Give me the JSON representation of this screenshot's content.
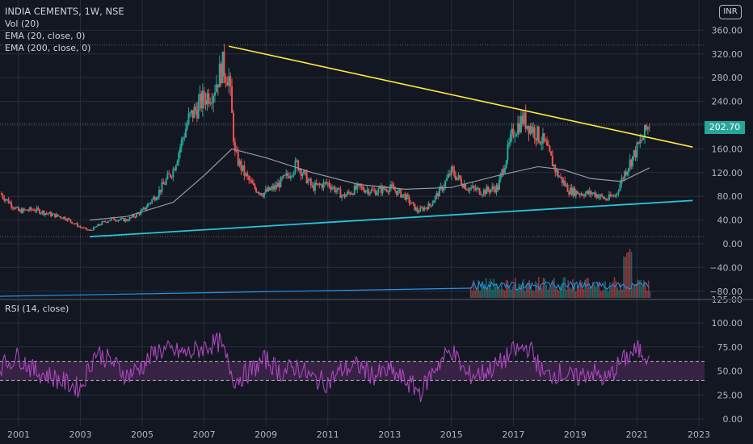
{
  "legend": {
    "title": "INDIA CEMENTS, 1W, NSE",
    "volume": "Vol (20)",
    "ema_fast": "EMA (20, close, 0)",
    "ema_slow": "EMA (200, close, 0)",
    "rsi": "RSI (14, close)"
  },
  "currency_badge": "INR",
  "last_price": "202.70",
  "colors": {
    "background": "#131722",
    "grid": "#2a2e39",
    "up": "#26a69a",
    "down": "#ef5350",
    "upper_trendline": "#ffeb3b",
    "lower_trendline": "#26c6da",
    "ema_slow": "#9598a1",
    "volume_ma": "#2196f3",
    "rsi_line": "#ab47bc",
    "rsi_band": "#3b2347"
  },
  "chart_data": [
    {
      "type": "candlestick",
      "title": "INDIA CEMENTS, 1W, NSE",
      "x": [
        2000.4,
        2001.0,
        2001.5,
        2002.0,
        2002.5,
        2003.0,
        2003.3,
        2003.7,
        2004.0,
        2004.5,
        2005.0,
        2005.5,
        2006.0,
        2006.5,
        2007.0,
        2007.3,
        2007.6,
        2007.8,
        2008.0,
        2008.3,
        2008.6,
        2008.9,
        2009.3,
        2009.7,
        2010.0,
        2010.5,
        2011.0,
        2011.5,
        2012.0,
        2012.5,
        2013.0,
        2013.5,
        2013.9,
        2014.3,
        2014.7,
        2015.0,
        2015.5,
        2016.0,
        2016.5,
        2017.0,
        2017.3,
        2017.6,
        2018.0,
        2018.4,
        2018.8,
        2019.2,
        2019.6,
        2020.0,
        2020.3,
        2020.6,
        2020.9,
        2021.2,
        2021.4
      ],
      "close": [
        85,
        55,
        58,
        50,
        44,
        28,
        22,
        35,
        42,
        40,
        55,
        85,
        125,
        210,
        245,
        260,
        300,
        280,
        150,
        118,
        95,
        85,
        95,
        115,
        135,
        95,
        102,
        80,
        95,
        88,
        95,
        80,
        55,
        65,
        95,
        122,
        95,
        88,
        95,
        190,
        210,
        195,
        170,
        120,
        90,
        85,
        85,
        75,
        82,
        120,
        150,
        180,
        202.7
      ],
      "xlim": [
        2000.4,
        2023
      ],
      "ylim": [
        0,
        400
      ],
      "yticks": [
        0,
        40,
        80,
        120,
        160,
        200,
        240,
        280,
        320,
        360
      ],
      "ytick_labels": [
        "0.00",
        "40.00",
        "80.00",
        "120.00",
        "160.00",
        "200.00",
        "240.00",
        "280.00",
        "320.00",
        "360.00"
      ],
      "xticks": [
        2001,
        2003,
        2005,
        2007,
        2009,
        2011,
        2013,
        2015,
        2017,
        2019,
        2021,
        2023
      ],
      "xtick_labels": [
        "2001",
        "2003",
        "2005",
        "2007",
        "2009",
        "2011",
        "2013",
        "2015",
        "2017",
        "2019",
        "2021",
        "2023"
      ],
      "ema_slow": {
        "x": [
          2003.3,
          2004.5,
          2006.0,
          2007.0,
          2007.9,
          2009.0,
          2010.5,
          2012.0,
          2013.5,
          2015.0,
          2016.5,
          2017.8,
          2018.6,
          2019.5,
          2020.5,
          2021.4
        ],
        "y": [
          40,
          46,
          70,
          115,
          160,
          145,
          120,
          100,
          92,
          95,
          115,
          130,
          125,
          110,
          105,
          128
        ]
      },
      "upper_trendline": {
        "x": [
          2007.8,
          2022.8
        ],
        "y": [
          333,
          163
        ]
      },
      "lower_trendline": {
        "x": [
          2003.3,
          2022.8
        ],
        "y": [
          12,
          73
        ]
      },
      "grid": true
    },
    {
      "type": "bar",
      "title": "Vol (20)",
      "note": "volume pane overlaid on price axis bottom, bars only from 2015 onward"
    },
    {
      "type": "line",
      "title": "RSI (14, close)",
      "x": [
        2000.4,
        2001.0,
        2001.5,
        2002.0,
        2002.5,
        2003.0,
        2003.5,
        2004.0,
        2004.5,
        2005.0,
        2005.5,
        2006.0,
        2006.5,
        2007.0,
        2007.5,
        2008.0,
        2008.5,
        2009.0,
        2009.5,
        2010.0,
        2010.5,
        2011.0,
        2011.5,
        2012.0,
        2012.5,
        2013.0,
        2013.5,
        2014.0,
        2014.5,
        2015.0,
        2015.5,
        2016.0,
        2016.5,
        2017.0,
        2017.5,
        2018.0,
        2018.5,
        2019.0,
        2019.5,
        2020.0,
        2020.5,
        2021.0,
        2021.4
      ],
      "y": [
        55,
        65,
        50,
        45,
        38,
        32,
        70,
        60,
        45,
        55,
        72,
        70,
        68,
        75,
        80,
        40,
        50,
        62,
        48,
        55,
        42,
        38,
        52,
        55,
        45,
        50,
        40,
        28,
        55,
        72,
        45,
        48,
        56,
        70,
        75,
        45,
        48,
        42,
        50,
        40,
        60,
        72,
        66
      ],
      "ylim": [
        0,
        125
      ],
      "yticks": [
        0,
        25,
        50,
        75,
        100
      ],
      "ytick_labels": [
        "0.00",
        "25.00",
        "50.00",
        "75.00",
        "100.00"
      ],
      "bands": [
        40,
        60
      ]
    }
  ]
}
